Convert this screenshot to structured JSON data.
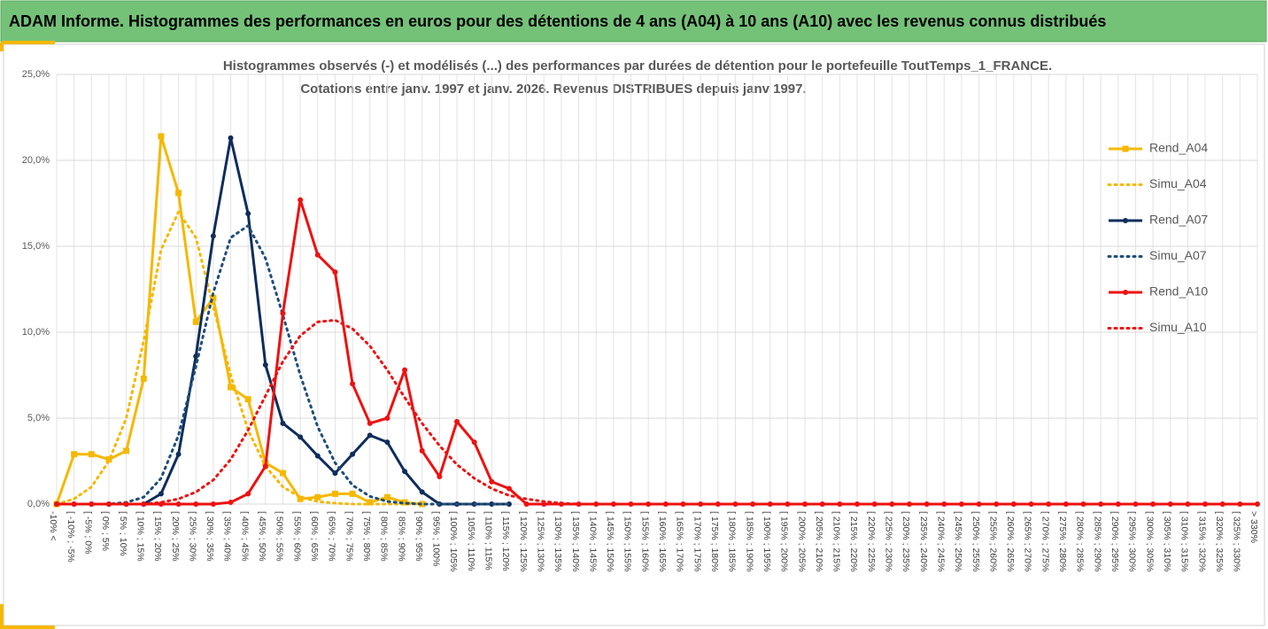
{
  "header": {
    "title": "ADAM Informe. Histogrammes des performances en euros pour des détentions de 4 ans (A04) à 10 ans (A10) avec les revenus connus distribués"
  },
  "chart_data": {
    "type": "line",
    "title": "Histogrammes observés (-) et modélisés (...) des performances par durées de détention pour  le portefeuille ToutTemps_1_FRANCE.",
    "subtitle": "Cotations  entre janv. 1997 et janv. 2026. Revenus DISTRIBUES depuis janv 1997.",
    "categories": [
      "-10% <",
      "[ -10% ; -5%",
      "[ -5% ; 0%",
      "[ 0% ; 5%",
      "[ 5% ; 10%",
      "[ 10% ; 15%",
      "[ 15% ; 20%",
      "[ 20% ; 25%",
      "[ 25% ; 30%",
      "[ 30% ; 35%",
      "[ 35% ; 40%",
      "[ 40% ; 45%",
      "[ 45% ; 50%",
      "[ 50% ; 55%",
      "[ 55% ; 60%",
      "[ 60% ; 65%",
      "[ 65% ; 70%",
      "[ 70% ; 75%",
      "[ 75% ; 80%",
      "[ 80% ; 85%",
      "[ 85% ; 90%",
      "[ 90% ; 95%",
      "[ 95% ; 100%",
      "[ 100% ; 105%",
      "[ 105% ; 110%",
      "[ 110% ; 115%",
      "[ 115% ; 120%",
      "[ 120% ; 125%",
      "[ 125% ; 130%",
      "[ 130% ; 135%",
      "[ 135% ; 140%",
      "[ 140% ; 145%",
      "[ 145% ; 150%",
      "[ 150% ; 155%",
      "[ 155% ; 160%",
      "[ 160% ; 165%",
      "[ 165% ; 170%",
      "[ 170% ; 175%",
      "[ 175% ; 180%",
      "[ 180% ; 185%",
      "[ 185% ; 190%",
      "[ 190% ; 195%",
      "[ 195% ; 200%",
      "[ 200% ; 205%",
      "[ 205% ; 210%",
      "[ 210% ; 215%",
      "[ 215% ; 220%",
      "[ 220% ; 225%",
      "[ 225% ; 230%",
      "[ 230% ; 235%",
      "[ 235% ; 240%",
      "[ 240% ; 245%",
      "[ 245% ; 250%",
      "[ 250% ; 255%",
      "[ 255% ; 260%",
      "[ 260% ; 265%",
      "[ 265% ; 270%",
      "[ 270% ; 275%",
      "[ 275% ; 280%",
      "[ 280% ; 285%",
      "[ 285% ; 290%",
      "[ 290% ; 295%",
      "[ 295% ; 300%",
      "[ 300% ; 305%",
      "[ 305% ; 310%",
      "[ 310% ; 315%",
      "[ 315% ; 320%",
      "[ 320% ; 325%",
      "[ 325% ; 330%",
      "> 330%"
    ],
    "series": [
      {
        "name": "Rend_A04",
        "color": "#f5b800",
        "style": "solid",
        "marker": "square",
        "values": [
          0,
          2.9,
          2.9,
          2.6,
          3.1,
          7.3,
          21.4,
          18.1,
          10.6,
          12.0,
          6.8,
          6.1,
          2.4,
          1.8,
          0.3,
          0.4,
          0.6,
          0.6,
          0.1,
          0.4,
          0.1,
          0,
          null,
          null,
          null,
          null,
          null,
          null,
          null,
          null,
          null,
          null,
          null,
          null,
          null,
          null,
          null,
          null,
          null,
          null,
          null,
          null,
          null,
          null,
          null,
          null,
          null,
          null,
          null,
          null,
          null,
          null,
          null,
          null,
          null,
          null,
          null,
          null,
          null,
          null,
          null,
          null,
          null,
          null,
          null,
          null,
          null,
          null,
          null,
          null
        ]
      },
      {
        "name": "Simu_A04",
        "color": "#f5b800",
        "style": "dotted",
        "values": [
          0,
          0.3,
          1.0,
          2.5,
          5.0,
          9.5,
          14.8,
          17.0,
          15.5,
          11.5,
          7.5,
          4.3,
          2.2,
          1.0,
          0.4,
          0.15,
          0.05,
          0,
          0,
          0,
          0,
          0,
          null,
          null,
          null,
          null,
          null,
          null,
          null,
          null,
          null,
          null,
          null,
          null,
          null,
          null,
          null,
          null,
          null,
          null,
          null,
          null,
          null,
          null,
          null,
          null,
          null,
          null,
          null,
          null,
          null,
          null,
          null,
          null,
          null,
          null,
          null,
          null,
          null,
          null,
          null,
          null,
          null,
          null,
          null,
          null,
          null,
          null,
          null,
          null
        ]
      },
      {
        "name": "Rend_A07",
        "color": "#0f2d5c",
        "style": "solid",
        "marker": "circle",
        "values": [
          0,
          0,
          0,
          0,
          0,
          0,
          0.6,
          2.9,
          8.6,
          15.6,
          21.3,
          16.9,
          8.1,
          4.7,
          3.9,
          2.8,
          1.8,
          2.9,
          4.0,
          3.6,
          1.9,
          0.7,
          0,
          0,
          0,
          0,
          0,
          null,
          null,
          null,
          null,
          null,
          null,
          null,
          null,
          null,
          null,
          null,
          null,
          null,
          null,
          null,
          null,
          null,
          null,
          null,
          null,
          null,
          null,
          null,
          null,
          null,
          null,
          null,
          null,
          null,
          null,
          null,
          null,
          null,
          null,
          null,
          null,
          null,
          null,
          null,
          null,
          null,
          null,
          null
        ]
      },
      {
        "name": "Simu_A07",
        "color": "#1f4e79",
        "style": "dotted",
        "values": [
          0,
          0,
          0,
          0,
          0.1,
          0.4,
          1.5,
          4.0,
          8.0,
          12.3,
          15.5,
          16.2,
          14.3,
          11.0,
          7.5,
          4.5,
          2.4,
          1.1,
          0.45,
          0.15,
          0.05,
          0,
          0,
          0,
          0,
          0,
          0,
          null,
          null,
          null,
          null,
          null,
          null,
          null,
          null,
          null,
          null,
          null,
          null,
          null,
          null,
          null,
          null,
          null,
          null,
          null,
          null,
          null,
          null,
          null,
          null,
          null,
          null,
          null,
          null,
          null,
          null,
          null,
          null,
          null,
          null,
          null,
          null,
          null,
          null,
          null,
          null,
          null,
          null,
          null
        ]
      },
      {
        "name": "Rend_A10",
        "color": "#ee1111",
        "style": "solid",
        "marker": "circle",
        "values": [
          0,
          0,
          0,
          0,
          0,
          0,
          0,
          0,
          0,
          0,
          0.1,
          0.6,
          2.2,
          11.1,
          17.7,
          14.5,
          13.5,
          7.0,
          4.7,
          5.0,
          7.8,
          3.1,
          1.6,
          4.8,
          3.6,
          1.3,
          0.9,
          0,
          0,
          0,
          0,
          0,
          0,
          0,
          0,
          0,
          0,
          0,
          0,
          0,
          0,
          0,
          0,
          0,
          0,
          0,
          0,
          0,
          0,
          0,
          0,
          0,
          0,
          0,
          0,
          0,
          0,
          0,
          0,
          0,
          0,
          0,
          0,
          0,
          0,
          0,
          0,
          0,
          0,
          0
        ]
      },
      {
        "name": "Simu_A10",
        "color": "#ee1111",
        "style": "dotted",
        "values": [
          0,
          0,
          0,
          0,
          0,
          0,
          0.1,
          0.3,
          0.7,
          1.4,
          2.6,
          4.3,
          6.3,
          8.3,
          9.8,
          10.6,
          10.7,
          10.2,
          9.2,
          7.8,
          6.2,
          4.7,
          3.4,
          2.3,
          1.5,
          0.9,
          0.5,
          0.3,
          0.15,
          0.05,
          0,
          0,
          0,
          0,
          0,
          0,
          0,
          0,
          0,
          0,
          0,
          0,
          0,
          0,
          0,
          0,
          0,
          0,
          0,
          0,
          0,
          0,
          0,
          0,
          0,
          0,
          0,
          0,
          0,
          0,
          0,
          0,
          0,
          0,
          0,
          0,
          0,
          0,
          0,
          0
        ]
      }
    ],
    "ylim": [
      0,
      25
    ],
    "yticks": [
      {
        "value": 0,
        "label": "0,0%"
      },
      {
        "value": 5,
        "label": "5,0%"
      },
      {
        "value": 10,
        "label": "10,0%"
      },
      {
        "value": 15,
        "label": "15,0%"
      },
      {
        "value": 20,
        "label": "20,0%"
      },
      {
        "value": 25,
        "label": "25,0%"
      }
    ],
    "grid": true,
    "legend": "right"
  }
}
